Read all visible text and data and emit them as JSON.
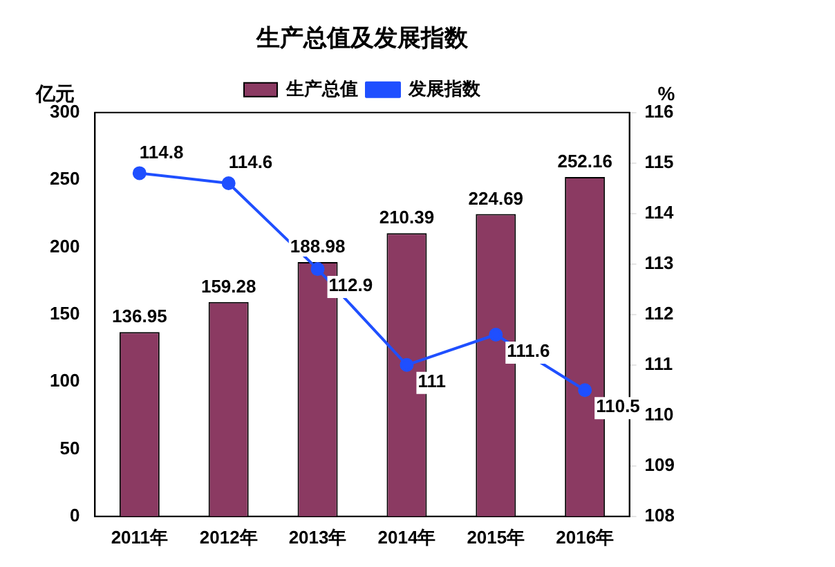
{
  "chart_data": {
    "type": "bar",
    "title": "生产总值及发展指数",
    "ylabel": "亿元",
    "y2label": "%",
    "categories": [
      "2011年",
      "2012年",
      "2013年",
      "2014年",
      "2015年",
      "2016年"
    ],
    "series": [
      {
        "name": "生产总值",
        "color": "#8b3a62",
        "values": [
          136.95,
          159.28,
          188.98,
          210.39,
          224.69,
          252.16
        ]
      },
      {
        "name": "发展指数",
        "type": "line",
        "axis": "y2",
        "color": "#1f4fff",
        "values": [
          114.8,
          114.6,
          112.9,
          111,
          111.6,
          110.5
        ]
      }
    ],
    "ylim": [
      0,
      300
    ],
    "yticks": [
      0,
      50,
      100,
      150,
      200,
      250,
      300
    ],
    "y2lim": [
      108,
      116
    ],
    "y2ticks": [
      108,
      109,
      110,
      111,
      112,
      113,
      114,
      115,
      116
    ],
    "grid": false,
    "legend": "top",
    "marker": "circle",
    "data_labels": true
  }
}
